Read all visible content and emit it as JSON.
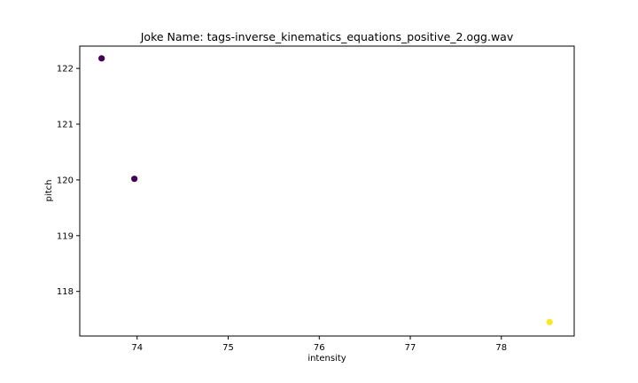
{
  "chart_data": {
    "type": "scatter",
    "title": "Joke Name: tags-inverse_kinematics_equations_positive_2.ogg.wav",
    "xlabel": "intensity",
    "ylabel": "pitch",
    "xlim": [
      73.37,
      78.8
    ],
    "ylim": [
      117.2,
      122.4
    ],
    "x_ticks": [
      "74",
      "75",
      "76",
      "77",
      "78"
    ],
    "y_ticks": [
      "118",
      "119",
      "120",
      "121",
      "122"
    ],
    "grid": false,
    "points": [
      {
        "x": 73.61,
        "y": 122.18,
        "color": "#440154"
      },
      {
        "x": 73.97,
        "y": 120.02,
        "color": "#440154"
      },
      {
        "x": 78.53,
        "y": 117.45,
        "color": "#fde725"
      }
    ]
  }
}
